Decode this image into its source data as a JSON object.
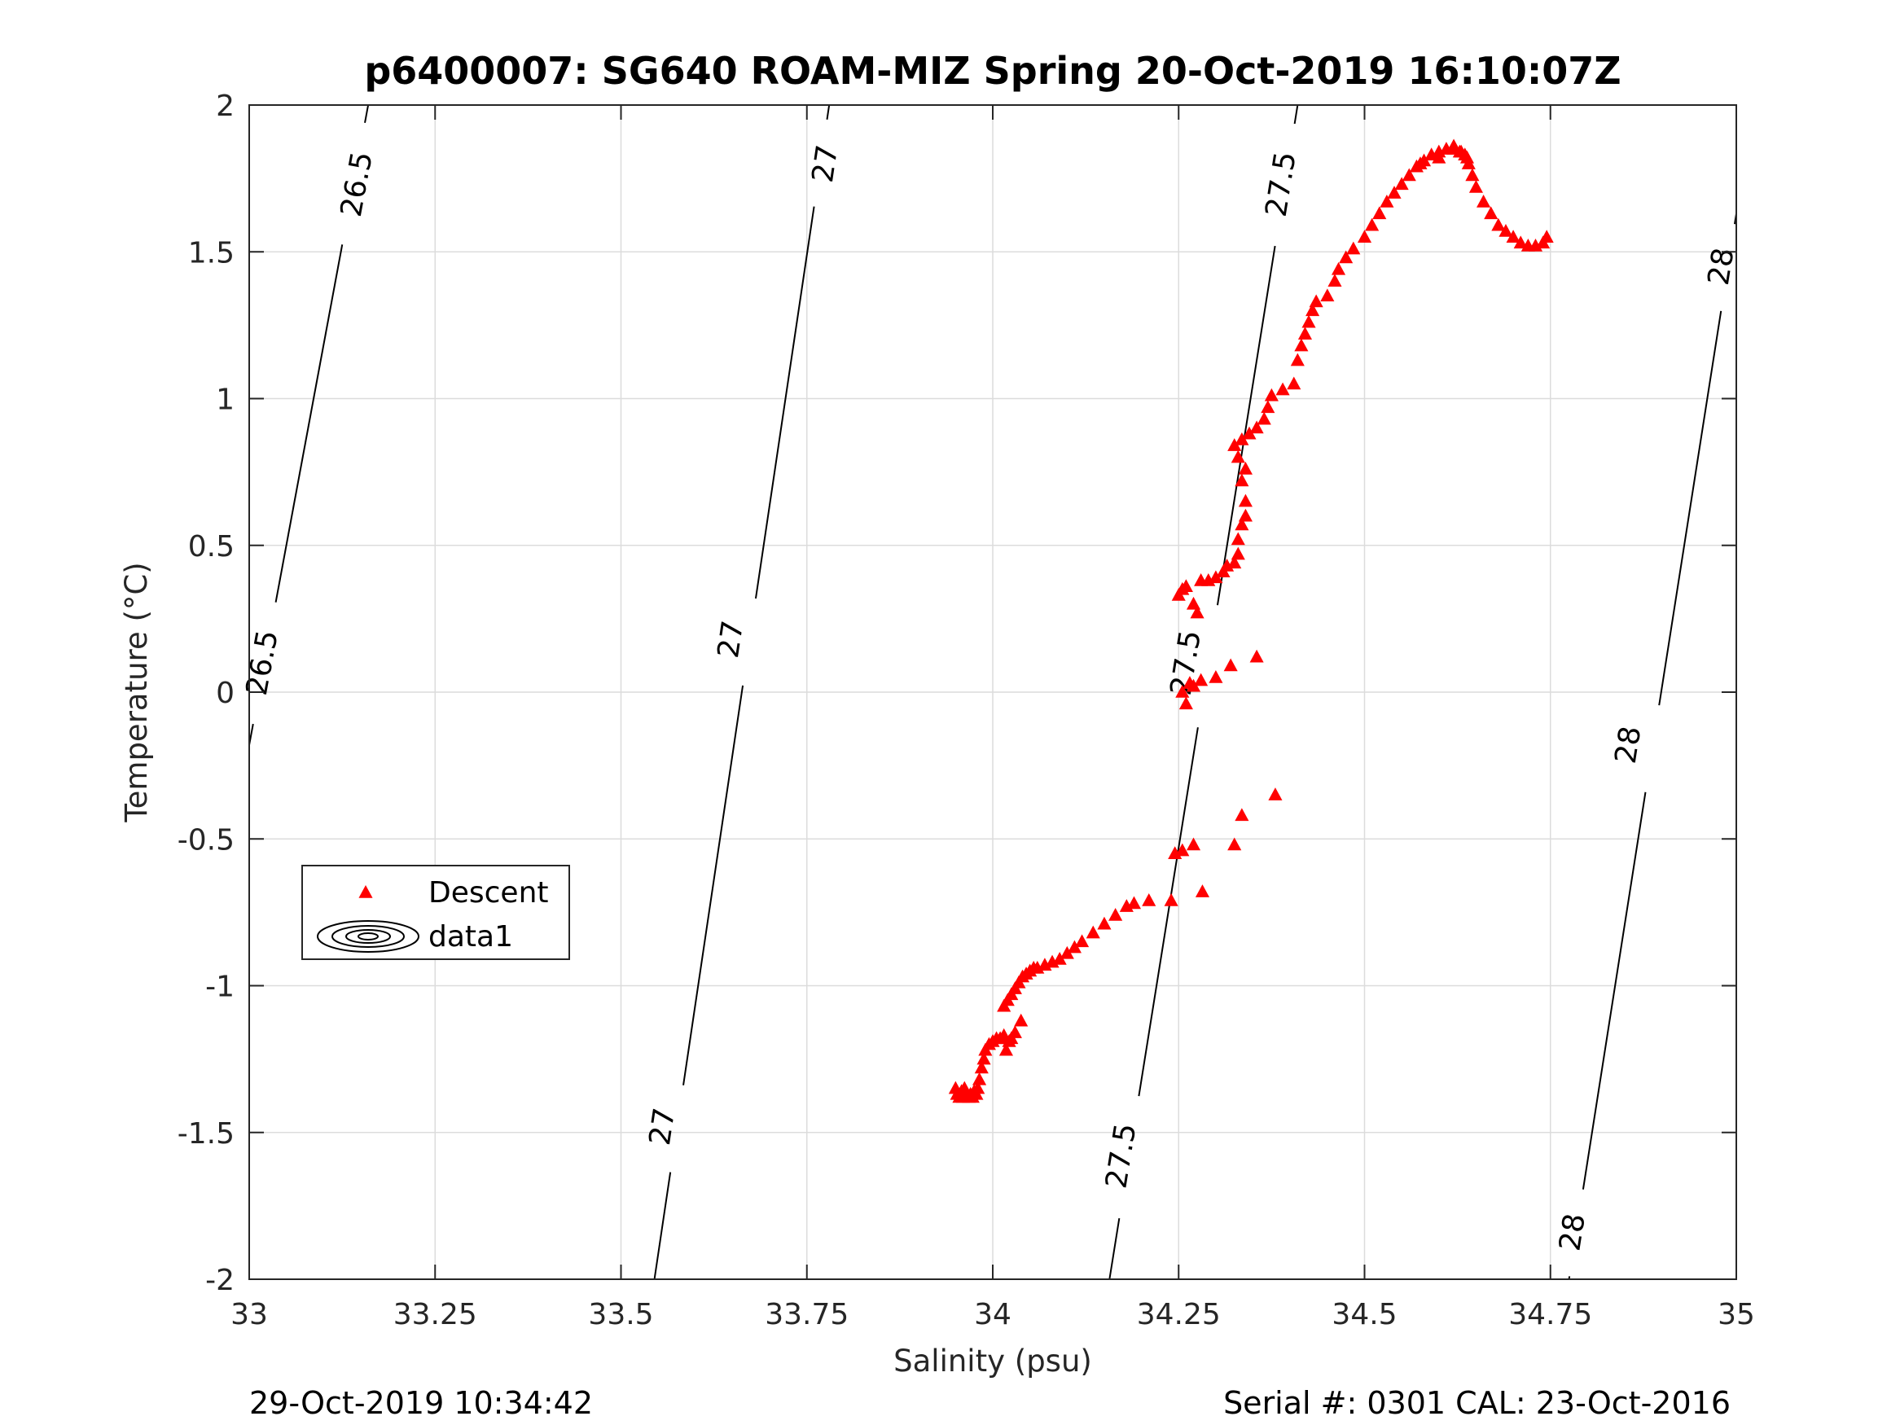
{
  "footer": {
    "left": "29-Oct-2019 10:34:42",
    "right": "Serial #: 0301  CAL: 23-Oct-2016"
  },
  "colors": {
    "descent": "#ff0000",
    "contour": "#000000",
    "grid": "#dcdcdc",
    "axis": "#262626"
  },
  "chart_data": {
    "type": "scatter",
    "title": "p6400007: SG640 ROAM-MIZ Spring 20-Oct-2019 16:10:07Z",
    "xlabel": "Salinity (psu)",
    "ylabel": "Temperature (°C)",
    "xlim": [
      33,
      35
    ],
    "ylim": [
      -2,
      2
    ],
    "xticks": [
      33,
      33.25,
      33.5,
      33.75,
      34,
      34.25,
      34.5,
      34.75,
      35
    ],
    "xtick_labels": [
      "33",
      "33.25",
      "33.5",
      "33.75",
      "34",
      "34.25",
      "34.5",
      "34.75",
      "35"
    ],
    "yticks": [
      -2,
      -1.5,
      -1,
      -0.5,
      0,
      0.5,
      1,
      1.5,
      2
    ],
    "ytick_labels": [
      "-2",
      "-1.5",
      "-1",
      "-0.5",
      "0",
      "0.5",
      "1",
      "1.5",
      "2"
    ],
    "grid": true,
    "legend": {
      "position": "left-middle",
      "entries": [
        "Descent",
        "data1"
      ]
    },
    "series": [
      {
        "name": "Descent",
        "marker": "triangle",
        "points": [
          [
            33.95,
            -1.35
          ],
          [
            33.952,
            -1.37
          ],
          [
            33.955,
            -1.38
          ],
          [
            33.958,
            -1.36
          ],
          [
            33.96,
            -1.38
          ],
          [
            33.962,
            -1.35
          ],
          [
            33.965,
            -1.37
          ],
          [
            33.968,
            -1.38
          ],
          [
            33.97,
            -1.37
          ],
          [
            33.973,
            -1.38
          ],
          [
            33.975,
            -1.36
          ],
          [
            33.978,
            -1.37
          ],
          [
            33.98,
            -1.35
          ],
          [
            33.982,
            -1.32
          ],
          [
            33.985,
            -1.28
          ],
          [
            33.988,
            -1.25
          ],
          [
            33.99,
            -1.22
          ],
          [
            33.995,
            -1.2
          ],
          [
            34.0,
            -1.19
          ],
          [
            34.005,
            -1.18
          ],
          [
            34.01,
            -1.18
          ],
          [
            34.015,
            -1.17
          ],
          [
            34.022,
            -1.19
          ],
          [
            34.025,
            -1.18
          ],
          [
            34.03,
            -1.16
          ],
          [
            34.038,
            -1.12
          ],
          [
            34.018,
            -1.22
          ],
          [
            34.015,
            -1.07
          ],
          [
            34.02,
            -1.05
          ],
          [
            34.025,
            -1.03
          ],
          [
            34.03,
            -1.01
          ],
          [
            34.035,
            -0.99
          ],
          [
            34.04,
            -0.97
          ],
          [
            34.045,
            -0.96
          ],
          [
            34.05,
            -0.95
          ],
          [
            34.055,
            -0.94
          ],
          [
            34.06,
            -0.94
          ],
          [
            34.07,
            -0.93
          ],
          [
            34.08,
            -0.92
          ],
          [
            34.09,
            -0.91
          ],
          [
            34.1,
            -0.89
          ],
          [
            34.11,
            -0.87
          ],
          [
            34.12,
            -0.85
          ],
          [
            34.135,
            -0.82
          ],
          [
            34.15,
            -0.79
          ],
          [
            34.165,
            -0.76
          ],
          [
            34.18,
            -0.73
          ],
          [
            34.19,
            -0.72
          ],
          [
            34.21,
            -0.71
          ],
          [
            34.24,
            -0.71
          ],
          [
            34.245,
            -0.55
          ],
          [
            34.255,
            -0.54
          ],
          [
            34.27,
            -0.52
          ],
          [
            34.282,
            -0.68
          ],
          [
            34.325,
            -0.52
          ],
          [
            34.335,
            -0.42
          ],
          [
            34.38,
            -0.35
          ],
          [
            34.255,
            0.0
          ],
          [
            34.26,
            -0.04
          ],
          [
            34.265,
            0.03
          ],
          [
            34.27,
            0.02
          ],
          [
            34.28,
            0.04
          ],
          [
            34.3,
            0.05
          ],
          [
            34.32,
            0.09
          ],
          [
            34.355,
            0.12
          ],
          [
            34.25,
            0.33
          ],
          [
            34.255,
            0.35
          ],
          [
            34.26,
            0.36
          ],
          [
            34.27,
            0.3
          ],
          [
            34.275,
            0.27
          ],
          [
            34.28,
            0.38
          ],
          [
            34.29,
            0.38
          ],
          [
            34.3,
            0.39
          ],
          [
            34.31,
            0.41
          ],
          [
            34.315,
            0.43
          ],
          [
            34.325,
            0.44
          ],
          [
            34.33,
            0.47
          ],
          [
            34.33,
            0.52
          ],
          [
            34.335,
            0.57
          ],
          [
            34.34,
            0.6
          ],
          [
            34.34,
            0.65
          ],
          [
            34.335,
            0.72
          ],
          [
            34.34,
            0.76
          ],
          [
            34.33,
            0.8
          ],
          [
            34.325,
            0.84
          ],
          [
            34.335,
            0.86
          ],
          [
            34.345,
            0.88
          ],
          [
            34.355,
            0.9
          ],
          [
            34.365,
            0.93
          ],
          [
            34.37,
            0.97
          ],
          [
            34.375,
            1.01
          ],
          [
            34.39,
            1.03
          ],
          [
            34.405,
            1.05
          ],
          [
            34.41,
            1.13
          ],
          [
            34.415,
            1.18
          ],
          [
            34.42,
            1.22
          ],
          [
            34.425,
            1.26
          ],
          [
            34.43,
            1.3
          ],
          [
            34.435,
            1.33
          ],
          [
            34.45,
            1.35
          ],
          [
            34.46,
            1.4
          ],
          [
            34.465,
            1.44
          ],
          [
            34.475,
            1.48
          ],
          [
            34.485,
            1.51
          ],
          [
            34.5,
            1.55
          ],
          [
            34.51,
            1.59
          ],
          [
            34.52,
            1.63
          ],
          [
            34.53,
            1.67
          ],
          [
            34.54,
            1.7
          ],
          [
            34.55,
            1.73
          ],
          [
            34.56,
            1.76
          ],
          [
            34.57,
            1.79
          ],
          [
            34.58,
            1.81
          ],
          [
            34.59,
            1.83
          ],
          [
            34.6,
            1.84
          ],
          [
            34.61,
            1.85
          ],
          [
            34.62,
            1.85
          ],
          [
            34.63,
            1.84
          ],
          [
            34.635,
            1.83
          ],
          [
            34.638,
            1.82
          ],
          [
            34.64,
            1.8
          ],
          [
            34.645,
            1.76
          ],
          [
            34.65,
            1.72
          ],
          [
            34.66,
            1.67
          ],
          [
            34.67,
            1.63
          ],
          [
            34.68,
            1.59
          ],
          [
            34.69,
            1.57
          ],
          [
            34.7,
            1.55
          ],
          [
            34.71,
            1.53
          ],
          [
            34.72,
            1.52
          ],
          [
            34.73,
            1.52
          ],
          [
            34.74,
            1.53
          ],
          [
            34.745,
            1.55
          ],
          [
            34.62,
            1.86
          ],
          [
            34.628,
            1.84
          ],
          [
            34.6,
            1.82
          ],
          [
            34.575,
            1.8
          ]
        ]
      },
      {
        "name": "data1",
        "type": "contour",
        "levels": [
          {
            "value": 26.5,
            "label": "26.5",
            "line": [
              [
                33.0,
                -0.18
              ],
              [
                33.16,
                2.0
              ]
            ],
            "label_points": [
              [
                33.018,
                0.1
              ],
              [
                33.145,
                1.73
              ]
            ]
          },
          {
            "value": 27,
            "label": "27",
            "line": [
              [
                33.545,
                -2.0
              ],
              [
                33.78,
                2.0
              ]
            ],
            "label_points": [
              [
                33.556,
                -1.48
              ],
              [
                33.648,
                0.18
              ],
              [
                33.775,
                1.8
              ]
            ]
          },
          {
            "value": 27.5,
            "label": "27.5",
            "line": [
              [
                34.157,
                -2.0
              ],
              [
                34.41,
                2.0
              ]
            ],
            "label_points": [
              [
                34.173,
                -1.58
              ],
              [
                34.26,
                0.1
              ],
              [
                34.388,
                1.73
              ]
            ]
          },
          {
            "value": 28,
            "label": "28",
            "line": [
              [
                34.775,
                -2.0
              ],
              [
                35.0,
                1.63
              ]
            ],
            "label_points": [
              [
                34.78,
                -1.84
              ],
              [
                34.855,
                -0.18
              ],
              [
                34.98,
                1.45
              ]
            ]
          }
        ]
      }
    ]
  }
}
